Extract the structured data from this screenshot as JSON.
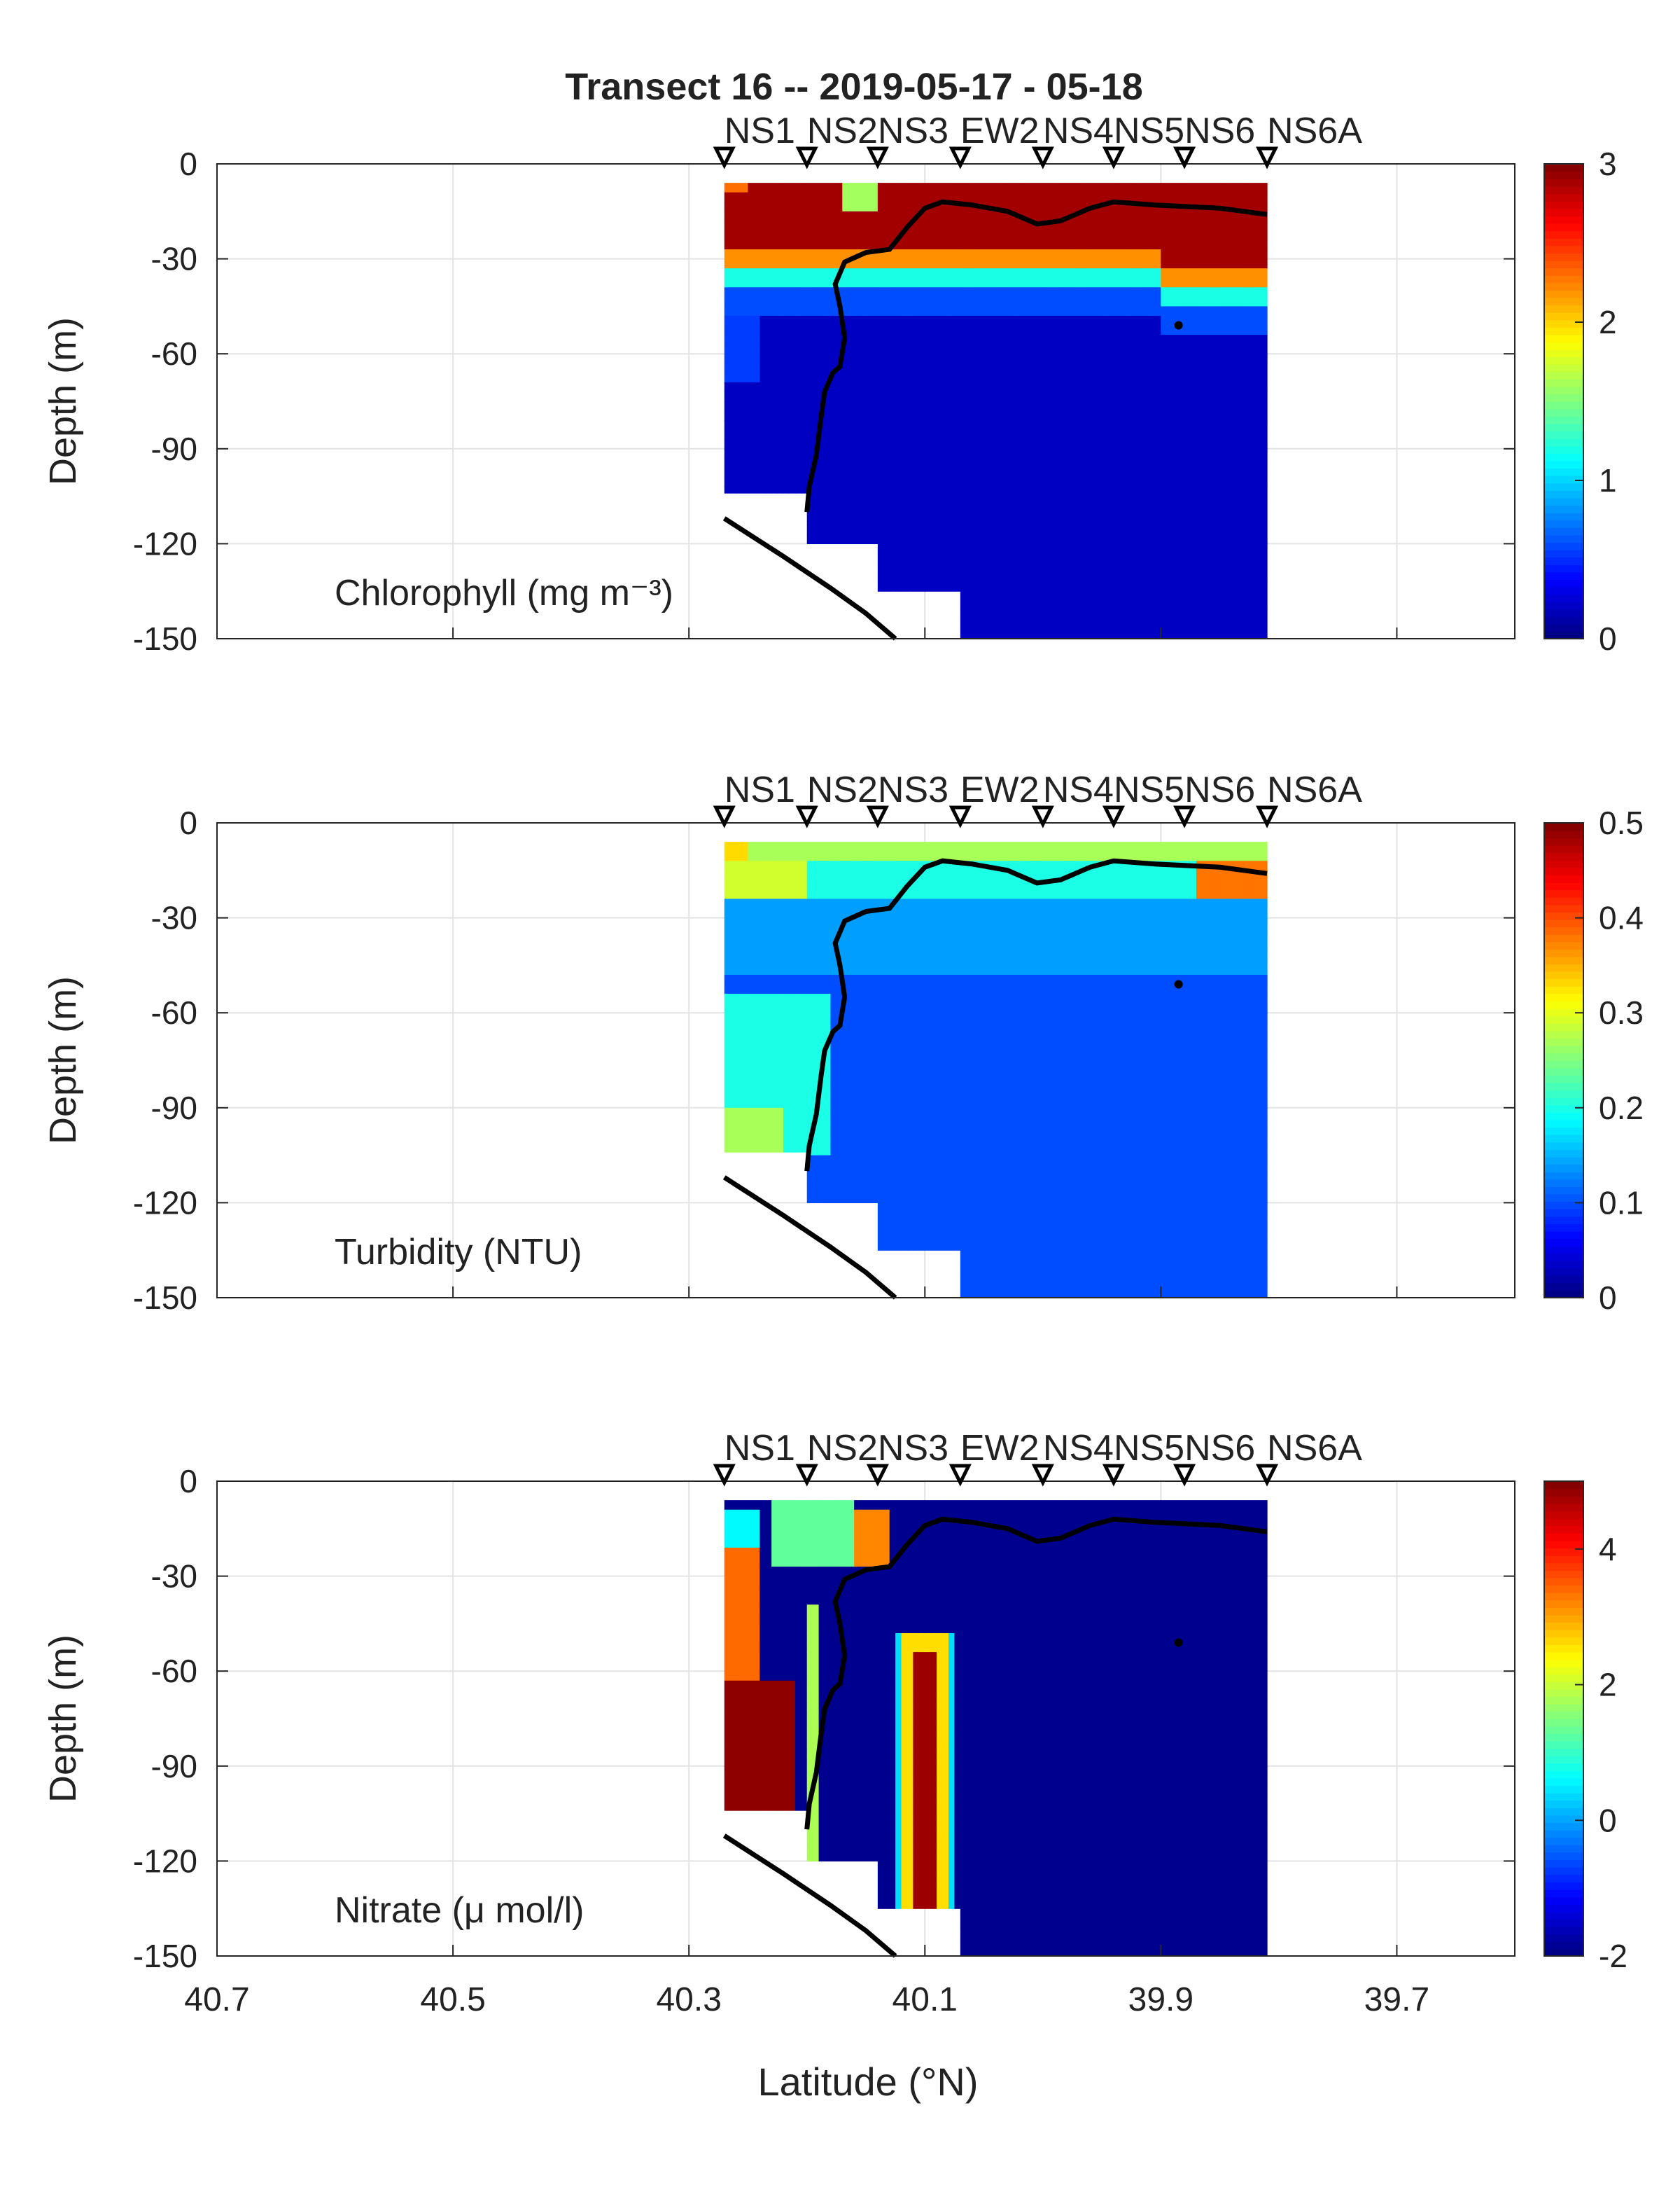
{
  "figure": {
    "title": "Transect 16 -- 2019-05-17 - 05-18",
    "xlabel": "Latitude (°N)",
    "ylabel": "Depth (m)"
  },
  "chart_data": [
    {
      "type": "heatmap",
      "label": "Chlorophyll (mg m⁻³)",
      "xlim": [
        40.7,
        39.6
      ],
      "x_reversed": true,
      "ylim": [
        -150,
        0
      ],
      "grid": true,
      "xticks": [
        "40.7",
        "40.5",
        "40.3",
        "40.1",
        "39.9",
        "39.7"
      ],
      "yticks": [
        "0",
        "-30",
        "-60",
        "-90",
        "-120",
        "-150"
      ],
      "stations": [
        {
          "name": "NS1",
          "lat": 40.27
        },
        {
          "name": "NS2",
          "lat": 40.2
        },
        {
          "name": "NS3",
          "lat": 40.14
        },
        {
          "name": "EW2",
          "lat": 40.07
        },
        {
          "name": "NS4",
          "lat": 40.0
        },
        {
          "name": "NS5",
          "lat": 39.94
        },
        {
          "name": "NS6",
          "lat": 39.88
        },
        {
          "name": "NS6A",
          "lat": 39.81
        }
      ],
      "colorbar": {
        "min": 0,
        "max": 3,
        "ticks": [
          "0",
          "1",
          "2",
          "3"
        ],
        "colormap": "jet"
      },
      "profile": "chl"
    },
    {
      "type": "heatmap",
      "label": "Turbidity (NTU)",
      "xlim": [
        40.7,
        39.6
      ],
      "x_reversed": true,
      "ylim": [
        -150,
        0
      ],
      "grid": true,
      "xticks": [
        "40.7",
        "40.5",
        "40.3",
        "40.1",
        "39.9",
        "39.7"
      ],
      "yticks": [
        "0",
        "-30",
        "-60",
        "-90",
        "-120",
        "-150"
      ],
      "stations": [
        {
          "name": "NS1",
          "lat": 40.27
        },
        {
          "name": "NS2",
          "lat": 40.2
        },
        {
          "name": "NS3",
          "lat": 40.14
        },
        {
          "name": "EW2",
          "lat": 40.07
        },
        {
          "name": "NS4",
          "lat": 40.0
        },
        {
          "name": "NS5",
          "lat": 39.94
        },
        {
          "name": "NS6",
          "lat": 39.88
        },
        {
          "name": "NS6A",
          "lat": 39.81
        }
      ],
      "colorbar": {
        "min": 0,
        "max": 0.5,
        "ticks": [
          "0",
          "0.1",
          "0.2",
          "0.3",
          "0.4",
          "0.5"
        ],
        "colormap": "jet"
      },
      "profile": "turb"
    },
    {
      "type": "heatmap",
      "label": "Nitrate (μ mol/l)",
      "xlim": [
        40.7,
        39.6
      ],
      "x_reversed": true,
      "ylim": [
        -150,
        0
      ],
      "grid": true,
      "xticks": [
        "40.7",
        "40.5",
        "40.3",
        "40.1",
        "39.9",
        "39.7"
      ],
      "yticks": [
        "0",
        "-30",
        "-60",
        "-90",
        "-120",
        "-150"
      ],
      "stations": [
        {
          "name": "NS1",
          "lat": 40.27
        },
        {
          "name": "NS2",
          "lat": 40.2
        },
        {
          "name": "NS3",
          "lat": 40.14
        },
        {
          "name": "EW2",
          "lat": 40.07
        },
        {
          "name": "NS4",
          "lat": 40.0
        },
        {
          "name": "NS5",
          "lat": 39.94
        },
        {
          "name": "NS6",
          "lat": 39.88
        },
        {
          "name": "NS6A",
          "lat": 39.81
        }
      ],
      "colorbar": {
        "min": -2,
        "max": 5,
        "ticks": [
          "-2",
          "0",
          "2",
          "4"
        ],
        "colormap": "jet"
      },
      "profile": "nit"
    }
  ],
  "data_region": {
    "bottom_steps": [
      {
        "lat_from": 40.27,
        "lat_to": 40.2,
        "depth": -104
      },
      {
        "lat_from": 40.2,
        "lat_to": 40.14,
        "depth": -120
      },
      {
        "lat_from": 40.14,
        "lat_to": 40.07,
        "depth": -135
      },
      {
        "lat_from": 40.07,
        "lat_to": 39.81,
        "depth": -150
      }
    ],
    "top_depth": -6
  },
  "overlay_lines": {
    "mixed_layer": [
      [
        40.2,
        -110
      ],
      [
        40.198,
        -102
      ],
      [
        40.192,
        -92
      ],
      [
        40.188,
        -80
      ],
      [
        40.185,
        -72
      ],
      [
        40.178,
        -66
      ],
      [
        40.172,
        -64
      ],
      [
        40.168,
        -55
      ],
      [
        40.172,
        -45
      ],
      [
        40.176,
        -38
      ],
      [
        40.168,
        -31
      ],
      [
        40.15,
        -28
      ],
      [
        40.13,
        -27
      ],
      [
        40.115,
        -20
      ],
      [
        40.1,
        -14
      ],
      [
        40.085,
        -12
      ],
      [
        40.06,
        -13
      ],
      [
        40.03,
        -15
      ],
      [
        40.005,
        -19
      ],
      [
        39.985,
        -18
      ],
      [
        39.96,
        -14
      ],
      [
        39.94,
        -12
      ],
      [
        39.905,
        -13
      ],
      [
        39.85,
        -14
      ],
      [
        39.81,
        -16
      ]
    ],
    "bathymetry": [
      [
        40.27,
        -112
      ],
      [
        40.22,
        -124
      ],
      [
        40.18,
        -134
      ],
      [
        40.15,
        -142
      ],
      [
        40.125,
        -150
      ]
    ],
    "marker": [
      39.885,
      -51
    ]
  }
}
